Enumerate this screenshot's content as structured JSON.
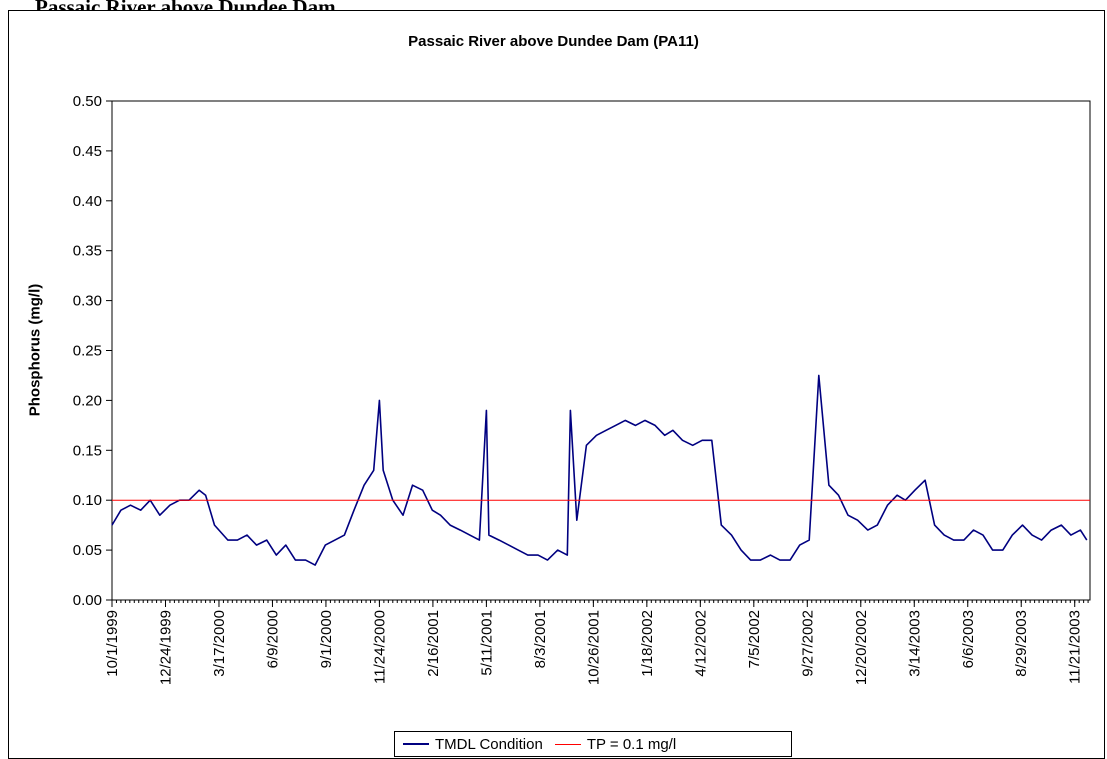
{
  "page": {
    "heading": "Passaic River above Dundee Dam"
  },
  "colors": {
    "tmdl_series": "#000080",
    "tp_line": "#ff0000",
    "axis": "#000000",
    "background": "#ffffff"
  },
  "chart_data": {
    "type": "line",
    "title": "Passaic River above Dundee Dam (PA11)",
    "xlabel": "",
    "ylabel": "Phosphorus (mg/l)",
    "ylim": [
      0,
      0.5
    ],
    "yticks": [
      "0.00",
      "0.05",
      "0.10",
      "0.15",
      "0.20",
      "0.25",
      "0.30",
      "0.35",
      "0.40",
      "0.45",
      "0.50"
    ],
    "xlim": [
      "1999-10-01",
      "2003-12-15"
    ],
    "xticks": [
      "10/1/1999",
      "12/24/1999",
      "3/17/2000",
      "6/9/2000",
      "9/1/2000",
      "11/24/2000",
      "2/16/2001",
      "5/11/2001",
      "8/3/2001",
      "10/26/2001",
      "1/18/2002",
      "4/12/2002",
      "7/5/2002",
      "9/27/2002",
      "12/20/2002",
      "3/14/2003",
      "6/6/2003",
      "8/29/2003",
      "11/21/2003"
    ],
    "grid": false,
    "legend_position": "bottom",
    "series": [
      {
        "name": "TMDL Condition",
        "x": [
          "1999-10-01",
          "1999-10-15",
          "1999-10-30",
          "1999-11-15",
          "1999-11-30",
          "1999-12-15",
          "1999-12-31",
          "2000-01-15",
          "2000-01-30",
          "2000-02-15",
          "2000-02-25",
          "2000-03-10",
          "2000-03-31",
          "2000-04-15",
          "2000-04-30",
          "2000-05-15",
          "2000-05-31",
          "2000-06-15",
          "2000-06-30",
          "2000-07-15",
          "2000-07-31",
          "2000-08-15",
          "2000-08-31",
          "2000-09-15",
          "2000-09-30",
          "2000-10-15",
          "2000-10-31",
          "2000-11-15",
          "2000-11-24",
          "2000-11-30",
          "2000-12-15",
          "2000-12-31",
          "2001-01-15",
          "2001-01-31",
          "2001-02-15",
          "2001-02-28",
          "2001-03-15",
          "2001-03-31",
          "2001-04-15",
          "2001-04-30",
          "2001-05-11",
          "2001-05-15",
          "2001-05-31",
          "2001-06-15",
          "2001-06-30",
          "2001-07-15",
          "2001-07-31",
          "2001-08-15",
          "2001-08-31",
          "2001-09-15",
          "2001-09-20",
          "2001-09-30",
          "2001-10-15",
          "2001-10-31",
          "2001-11-15",
          "2001-11-30",
          "2001-12-15",
          "2001-12-31",
          "2002-01-15",
          "2002-01-31",
          "2002-02-15",
          "2002-02-28",
          "2002-03-15",
          "2002-03-31",
          "2002-04-15",
          "2002-04-30",
          "2002-05-15",
          "2002-05-31",
          "2002-06-15",
          "2002-06-30",
          "2002-07-15",
          "2002-07-31",
          "2002-08-15",
          "2002-08-31",
          "2002-09-15",
          "2002-09-30",
          "2002-10-15",
          "2002-10-31",
          "2002-11-15",
          "2002-11-30",
          "2002-12-15",
          "2002-12-31",
          "2003-01-15",
          "2003-01-31",
          "2003-02-15",
          "2003-02-28",
          "2003-03-15",
          "2003-03-31",
          "2003-04-15",
          "2003-04-30",
          "2003-05-15",
          "2003-05-31",
          "2003-06-15",
          "2003-06-30",
          "2003-07-15",
          "2003-07-31",
          "2003-08-15",
          "2003-08-31",
          "2003-09-15",
          "2003-09-30",
          "2003-10-15",
          "2003-10-31",
          "2003-11-15",
          "2003-11-30",
          "2003-12-10"
        ],
        "y": [
          0.075,
          0.09,
          0.095,
          0.09,
          0.1,
          0.085,
          0.095,
          0.1,
          0.1,
          0.11,
          0.105,
          0.075,
          0.06,
          0.06,
          0.065,
          0.055,
          0.06,
          0.045,
          0.055,
          0.04,
          0.04,
          0.035,
          0.055,
          0.06,
          0.065,
          0.09,
          0.115,
          0.13,
          0.2,
          0.13,
          0.1,
          0.085,
          0.115,
          0.11,
          0.09,
          0.085,
          0.075,
          0.07,
          0.065,
          0.06,
          0.19,
          0.065,
          0.06,
          0.055,
          0.05,
          0.045,
          0.045,
          0.04,
          0.05,
          0.045,
          0.19,
          0.08,
          0.155,
          0.165,
          0.17,
          0.175,
          0.18,
          0.175,
          0.18,
          0.175,
          0.165,
          0.17,
          0.16,
          0.155,
          0.16,
          0.16,
          0.075,
          0.065,
          0.05,
          0.04,
          0.04,
          0.045,
          0.04,
          0.04,
          0.055,
          0.06,
          0.225,
          0.115,
          0.105,
          0.085,
          0.08,
          0.07,
          0.075,
          0.095,
          0.105,
          0.1,
          0.11,
          0.12,
          0.075,
          0.065,
          0.06,
          0.06,
          0.07,
          0.065,
          0.05,
          0.05,
          0.065,
          0.075,
          0.065,
          0.06,
          0.07,
          0.075,
          0.065,
          0.07,
          0.06
        ]
      },
      {
        "name": "TP = 0.1 mg/l",
        "x": [
          "1999-10-01",
          "2003-12-15"
        ],
        "y": [
          0.1,
          0.1
        ]
      }
    ]
  }
}
